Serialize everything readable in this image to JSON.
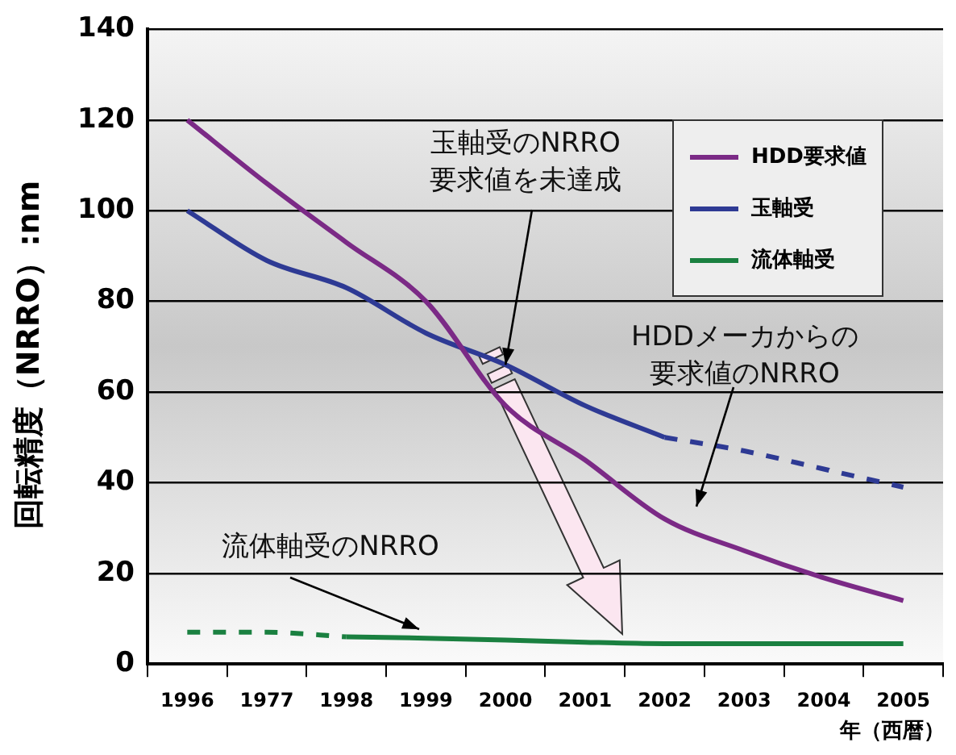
{
  "chart_data": {
    "type": "line",
    "ylabel": "回転精度（NRRO）:nm",
    "xlabel": "年（西暦）",
    "categories": [
      "1996",
      "1977",
      "1998",
      "1999",
      "2000",
      "2001",
      "2002",
      "2003",
      "2004",
      "2005"
    ],
    "ylim": [
      0,
      140
    ],
    "yticks": [
      0,
      20,
      40,
      60,
      80,
      100,
      120,
      140
    ],
    "grid": "y",
    "legend": "top right",
    "marker": "none",
    "series": [
      {
        "name": "HDD要求値",
        "color": "#7b2a86",
        "values": [
          120,
          106,
          93,
          80,
          57,
          45,
          32,
          25,
          19,
          14
        ],
        "line_style": "solid"
      },
      {
        "name": "玉軸受",
        "color": "#2e3a94",
        "values": [
          100,
          89,
          83,
          73,
          66,
          57,
          50,
          null,
          null,
          null
        ],
        "line_style": "solid"
      },
      {
        "color": "#2e3a94",
        "values": [
          null,
          null,
          null,
          null,
          null,
          null,
          50,
          47,
          43,
          39
        ],
        "line_style": "dashed"
      },
      {
        "name": "流体軸受",
        "color": "#1a8040",
        "values": [
          null,
          null,
          6,
          5.7,
          5.3,
          4.8,
          4.5,
          4.5,
          4.5,
          4.5
        ],
        "line_style": "solid"
      },
      {
        "color": "#1a8040",
        "values": [
          7,
          7,
          6,
          null,
          null,
          null,
          null,
          null,
          null,
          null
        ],
        "line_style": "dashed"
      }
    ],
    "annotations": [
      {
        "text": "玉軸受のNRRO要求値を未達成",
        "x": "2000",
        "y": 66
      },
      "HDDメーカからの要求値のNRRO",
      "流体軸受のNRRO"
    ]
  }
}
